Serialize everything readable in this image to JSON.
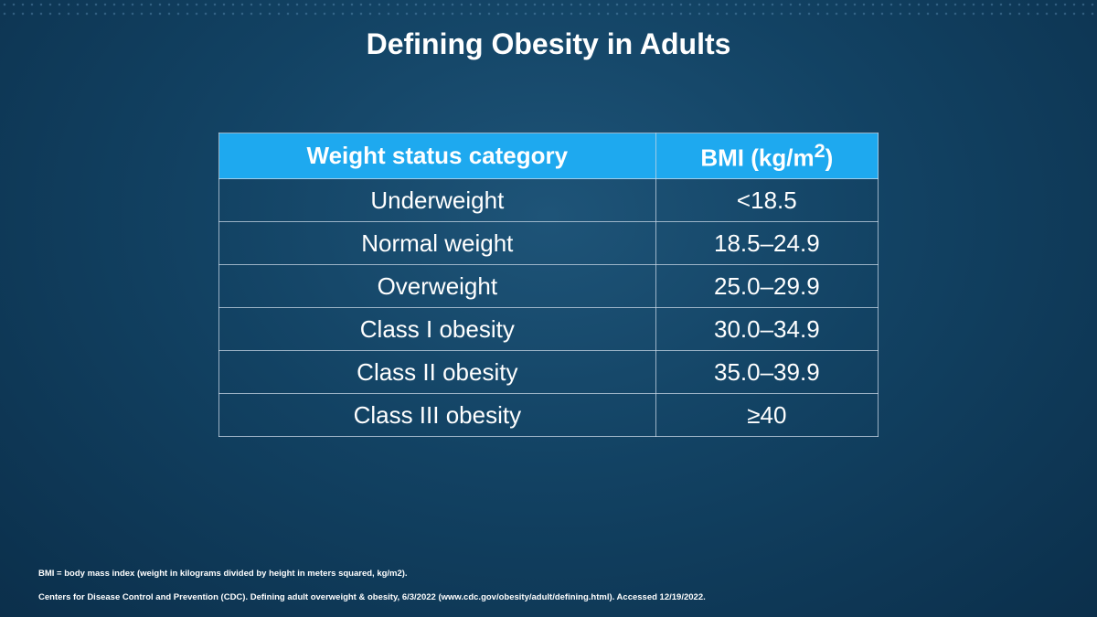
{
  "slide": {
    "title": "Defining Obesity in Adults"
  },
  "table": {
    "headers": {
      "category": "Weight status category",
      "bmi_prefix": "BMI (kg/m",
      "bmi_superscript": "2",
      "bmi_suffix": ")"
    },
    "rows": [
      {
        "category": "Underweight",
        "bmi": "<18.5"
      },
      {
        "category": "Normal weight",
        "bmi": "18.5–24.9"
      },
      {
        "category": "Overweight",
        "bmi": "25.0–29.9"
      },
      {
        "category": "Class I obesity",
        "bmi": "30.0–34.9"
      },
      {
        "category": "Class II obesity",
        "bmi": "35.0–39.9"
      },
      {
        "category": "Class III obesity",
        "bmi": "≥40"
      }
    ]
  },
  "footnotes": {
    "abbreviation": "BMI = body mass index (weight in kilograms divided by height in meters squared, kg/m2).",
    "reference": "Centers for Disease Control and Prevention (CDC). Defining adult overweight & obesity, 6/3/2022 (www.cdc.gov/obesity/adult/defining.html). Accessed 12/19/2022."
  },
  "colors": {
    "background": "#124263",
    "header_fill": "#1ea9ef",
    "text": "#ffffff"
  }
}
